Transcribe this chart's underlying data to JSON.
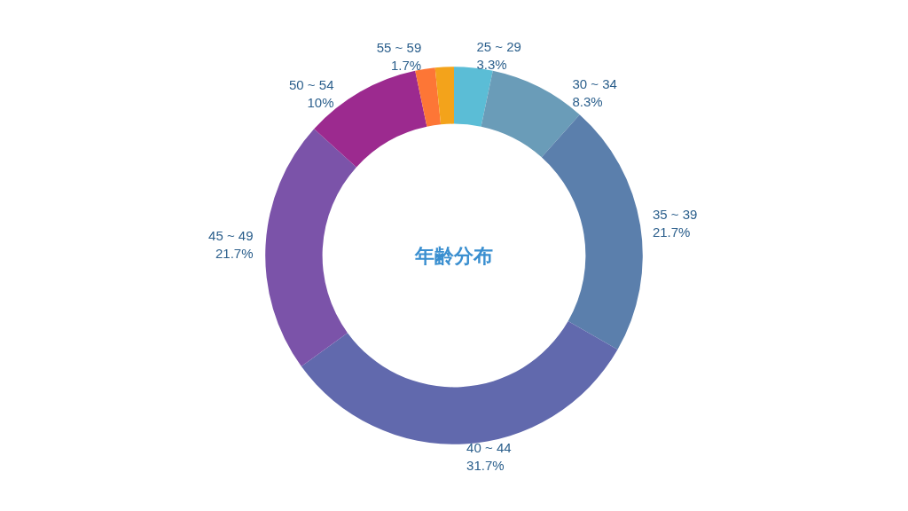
{
  "chart_data": {
    "type": "donut",
    "title": "年齢分布",
    "categories": [
      "25 ~ 29",
      "30 ~ 34",
      "35 ~ 39",
      "40 ~ 44",
      "45 ~ 49",
      "50 ~ 54",
      "55 ~ 59",
      null
    ],
    "values": [
      3.3,
      8.3,
      21.7,
      31.7,
      21.7,
      10,
      1.7,
      1.6
    ],
    "value_labels": [
      "3.3%",
      "8.3%",
      "21.7%",
      "31.7%",
      "21.7%",
      "10%",
      "1.7%",
      null
    ],
    "colors": [
      "#5bbdd6",
      "#6a9cb8",
      "#5b7fac",
      "#6169ad",
      "#7b53a9",
      "#9c2a8f",
      "#fd7636",
      "#f3a31b"
    ]
  }
}
